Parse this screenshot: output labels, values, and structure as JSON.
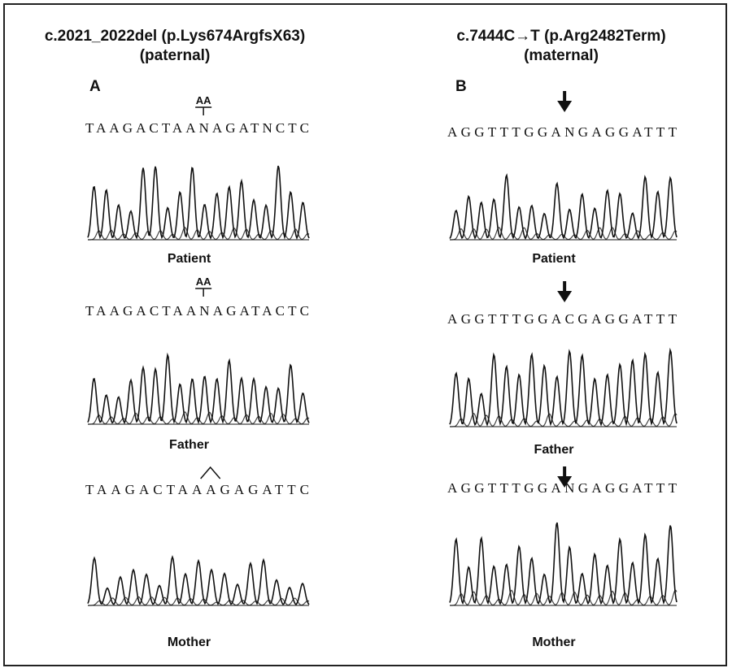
{
  "panels": [
    {
      "title": "c.2021_2022del (p.Lys674ArgfsX63)",
      "subtitle": "(paternal)",
      "letter": "A",
      "rows": [
        {
          "annotation": "AA",
          "sequence": "TAAGACTAANAGATNCTC",
          "label": "Patient"
        },
        {
          "annotation": "AA",
          "sequence": "TAAGACTAANAGATACTC",
          "label": "Father"
        },
        {
          "sequence": "TAAGACTAAAGAGATTC",
          "label": "Mother"
        }
      ]
    },
    {
      "title": "c.7444C→T (p.Arg2482Term)",
      "subtitle": "(maternal)",
      "letter": "B",
      "rows": [
        {
          "sequence": "AGGTTTGGANGAGGATTT",
          "label": "Patient"
        },
        {
          "sequence": "AGGTTTGGACGAGGATTT",
          "label": "Father"
        },
        {
          "sequence": "AGGTTTGGANGAGGATTT",
          "label": "Mother"
        }
      ]
    }
  ]
}
